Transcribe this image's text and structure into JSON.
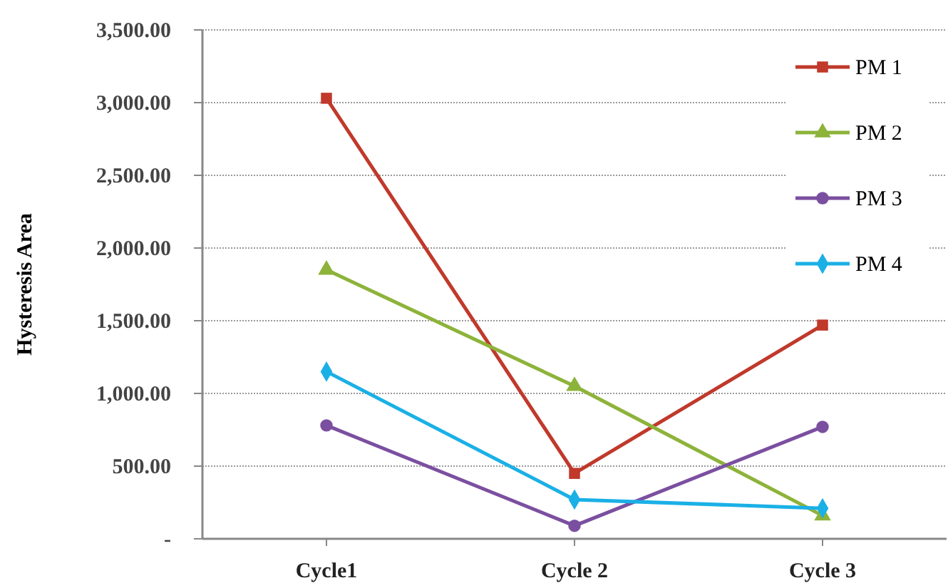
{
  "chart_data": {
    "type": "line",
    "ylabel": "Hysteresis Area",
    "categories": [
      "Cycle1",
      "Cycle 2",
      "Cycle 3"
    ],
    "series": [
      {
        "name": "PM 1",
        "color": "#c0392b",
        "marker": "square",
        "values": [
          3030,
          450,
          1470
        ]
      },
      {
        "name": "PM 2",
        "color": "#8db33a",
        "marker": "triangle",
        "values": [
          1850,
          1050,
          160
        ]
      },
      {
        "name": "PM 3",
        "color": "#7b4fa0",
        "marker": "circle",
        "values": [
          780,
          90,
          770
        ]
      },
      {
        "name": "PM 4",
        "color": "#1ab0e6",
        "marker": "diamond",
        "values": [
          1150,
          270,
          210
        ]
      }
    ],
    "ylim": [
      0,
      3500
    ],
    "yticks": [
      {
        "value": 0,
        "label": "-"
      },
      {
        "value": 500,
        "label": "500.00"
      },
      {
        "value": 1000,
        "label": "1,000.00"
      },
      {
        "value": 1500,
        "label": "1,500.00"
      },
      {
        "value": 2000,
        "label": "2,000.00"
      },
      {
        "value": 2500,
        "label": "2,500.00"
      },
      {
        "value": 3000,
        "label": "3,000.00"
      },
      {
        "value": 3500,
        "label": "3,500.00"
      }
    ],
    "grid": "y",
    "legend": "top right"
  }
}
